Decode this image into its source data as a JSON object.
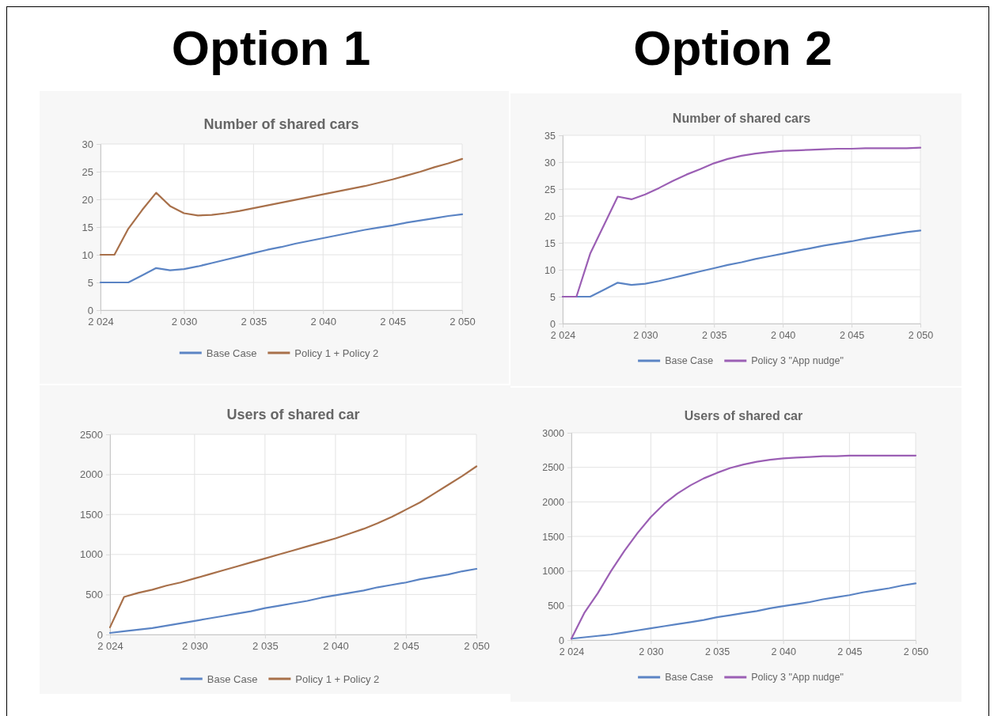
{
  "chart_data": [
    {
      "type": "other",
      "title": "Option 1"
    },
    {
      "type": "other",
      "title": "Option 2"
    },
    {
      "type": "line",
      "title": "Number of shared cars",
      "x": [
        2024,
        2025,
        2026,
        2027,
        2028,
        2029,
        2030,
        2031,
        2032,
        2033,
        2034,
        2035,
        2036,
        2037,
        2038,
        2039,
        2040,
        2041,
        2042,
        2043,
        2044,
        2045,
        2046,
        2047,
        2048,
        2049,
        2050
      ],
      "series": [
        {
          "name": "Base Case",
          "color": "#5b84c4",
          "values": [
            5,
            5,
            5,
            6.3,
            7.6,
            7.2,
            7.4,
            7.9,
            8.5,
            9.1,
            9.7,
            10.3,
            10.9,
            11.4,
            12.0,
            12.5,
            13.0,
            13.5,
            14.0,
            14.5,
            14.9,
            15.3,
            15.8,
            16.2,
            16.6,
            17.0,
            17.3
          ]
        },
        {
          "name": "Policy 1 + Policy 2",
          "color": "#a8704a",
          "values": [
            10,
            10,
            14.7,
            18.1,
            21.2,
            18.8,
            17.5,
            17.1,
            17.2,
            17.5,
            17.9,
            18.4,
            18.9,
            19.4,
            19.9,
            20.4,
            20.9,
            21.4,
            21.9,
            22.4,
            23.0,
            23.6,
            24.3,
            25.0,
            25.8,
            26.5,
            27.3
          ]
        }
      ],
      "xlim": [
        2024,
        2050
      ],
      "xticks": [
        {
          "value": 2024,
          "label": "2 024"
        },
        {
          "value": 2030,
          "label": "2 030"
        },
        {
          "value": 2035,
          "label": "2 035"
        },
        {
          "value": 2040,
          "label": "2 040"
        },
        {
          "value": 2045,
          "label": "2 045"
        },
        {
          "value": 2050,
          "label": "2 050"
        }
      ],
      "ylim": [
        0,
        30
      ],
      "yticks": [
        0,
        5,
        10,
        15,
        20,
        25,
        30
      ],
      "grid": true,
      "legend": "bottom"
    },
    {
      "type": "line",
      "title": "Number of shared cars",
      "x": [
        2024,
        2025,
        2026,
        2027,
        2028,
        2029,
        2030,
        2031,
        2032,
        2033,
        2034,
        2035,
        2036,
        2037,
        2038,
        2039,
        2040,
        2041,
        2042,
        2043,
        2044,
        2045,
        2046,
        2047,
        2048,
        2049,
        2050
      ],
      "series": [
        {
          "name": "Base Case",
          "color": "#5b84c4",
          "values": [
            5,
            5,
            5,
            6.3,
            7.6,
            7.2,
            7.4,
            7.9,
            8.5,
            9.1,
            9.7,
            10.3,
            10.9,
            11.4,
            12.0,
            12.5,
            13.0,
            13.5,
            14.0,
            14.5,
            14.9,
            15.3,
            15.8,
            16.2,
            16.6,
            17.0,
            17.3
          ]
        },
        {
          "name": "Policy 3 \"App nudge\"",
          "color": "#9b5fb4",
          "values": [
            5,
            5,
            13.0,
            18.3,
            23.6,
            23.1,
            24.0,
            25.2,
            26.5,
            27.7,
            28.7,
            29.8,
            30.6,
            31.2,
            31.6,
            31.9,
            32.1,
            32.2,
            32.3,
            32.4,
            32.5,
            32.5,
            32.6,
            32.6,
            32.6,
            32.6,
            32.7
          ]
        }
      ],
      "xlim": [
        2024,
        2050
      ],
      "xticks": [
        {
          "value": 2024,
          "label": "2 024"
        },
        {
          "value": 2030,
          "label": "2 030"
        },
        {
          "value": 2035,
          "label": "2 035"
        },
        {
          "value": 2040,
          "label": "2 040"
        },
        {
          "value": 2045,
          "label": "2 045"
        },
        {
          "value": 2050,
          "label": "2 050"
        }
      ],
      "ylim": [
        0,
        35
      ],
      "yticks": [
        0,
        5,
        10,
        15,
        20,
        25,
        30,
        35
      ],
      "grid": true,
      "legend": "bottom"
    },
    {
      "type": "line",
      "title": "Users of shared car",
      "x": [
        2024,
        2025,
        2026,
        2027,
        2028,
        2029,
        2030,
        2031,
        2032,
        2033,
        2034,
        2035,
        2036,
        2037,
        2038,
        2039,
        2040,
        2041,
        2042,
        2043,
        2044,
        2045,
        2046,
        2047,
        2048,
        2049,
        2050
      ],
      "series": [
        {
          "name": "Base Case",
          "color": "#5b84c4",
          "values": [
            20,
            40,
            60,
            80,
            110,
            140,
            170,
            200,
            230,
            260,
            290,
            330,
            360,
            390,
            420,
            460,
            490,
            520,
            550,
            590,
            620,
            650,
            690,
            720,
            750,
            790,
            820
          ]
        },
        {
          "name": "Policy 1 + Policy 2",
          "color": "#a8704a",
          "values": [
            90,
            470,
            520,
            560,
            610,
            650,
            700,
            750,
            800,
            850,
            900,
            950,
            1000,
            1050,
            1100,
            1150,
            1200,
            1260,
            1320,
            1390,
            1470,
            1560,
            1650,
            1760,
            1870,
            1980,
            2100
          ]
        }
      ],
      "xlim": [
        2024,
        2050
      ],
      "xticks": [
        {
          "value": 2024,
          "label": "2 024"
        },
        {
          "value": 2030,
          "label": "2 030"
        },
        {
          "value": 2035,
          "label": "2 035"
        },
        {
          "value": 2040,
          "label": "2 040"
        },
        {
          "value": 2045,
          "label": "2 045"
        },
        {
          "value": 2050,
          "label": "2 050"
        }
      ],
      "ylim": [
        0,
        2500
      ],
      "yticks": [
        0,
        500,
        1000,
        1500,
        2000,
        2500
      ],
      "grid": true,
      "legend": "bottom"
    },
    {
      "type": "line",
      "title": "Users of shared car",
      "x": [
        2024,
        2025,
        2026,
        2027,
        2028,
        2029,
        2030,
        2031,
        2032,
        2033,
        2034,
        2035,
        2036,
        2037,
        2038,
        2039,
        2040,
        2041,
        2042,
        2043,
        2044,
        2045,
        2046,
        2047,
        2048,
        2049,
        2050
      ],
      "series": [
        {
          "name": "Base Case",
          "color": "#5b84c4",
          "values": [
            20,
            40,
            60,
            80,
            110,
            140,
            170,
            200,
            230,
            260,
            290,
            330,
            360,
            390,
            420,
            460,
            490,
            520,
            550,
            590,
            620,
            650,
            690,
            720,
            750,
            790,
            820
          ]
        },
        {
          "name": "Policy 3 \"App nudge\"",
          "color": "#9b5fb4",
          "values": [
            20,
            400,
            680,
            1000,
            1290,
            1550,
            1780,
            1970,
            2120,
            2240,
            2340,
            2420,
            2490,
            2540,
            2580,
            2610,
            2630,
            2640,
            2650,
            2660,
            2660,
            2670,
            2670,
            2670,
            2670,
            2670,
            2670
          ]
        }
      ],
      "xlim": [
        2024,
        2050
      ],
      "xticks": [
        {
          "value": 2024,
          "label": "2 024"
        },
        {
          "value": 2030,
          "label": "2 030"
        },
        {
          "value": 2035,
          "label": "2 035"
        },
        {
          "value": 2040,
          "label": "2 040"
        },
        {
          "value": 2045,
          "label": "2 045"
        },
        {
          "value": 2050,
          "label": "2 050"
        }
      ],
      "ylim": [
        0,
        3000
      ],
      "yticks": [
        0,
        500,
        1000,
        1500,
        2000,
        2500,
        3000
      ],
      "grid": true,
      "legend": "bottom"
    }
  ]
}
